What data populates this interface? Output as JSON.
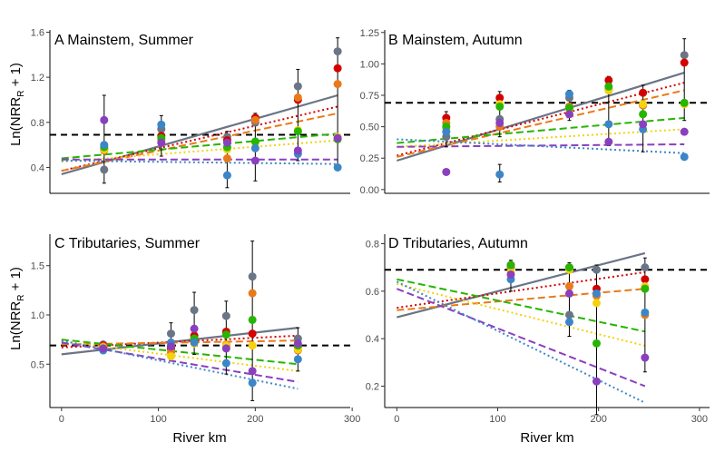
{
  "figure": {
    "ylabel_main": "Ln(NRR",
    "ylabel_sub": "R",
    "ylabel_tail": " + 1)",
    "xlabel": "River km"
  },
  "colors": {
    "red": "#d40000",
    "orange": "#e97a19",
    "yellow": "#f5d20d",
    "green": "#26b500",
    "blue": "#3b86c8",
    "purple": "#8a3fbf",
    "gray": "#6a7586",
    "reference": "#000000"
  },
  "chart_data": [
    {
      "type": "scatter",
      "title": "A Mainstem, Summer",
      "xlabel": "",
      "ylabel": "Ln(NRR_R + 1)",
      "xlim": [
        -12,
        298
      ],
      "ylim": [
        0.17,
        1.62
      ],
      "xticks": [],
      "yticks": [
        0.4,
        0.8,
        1.2,
        1.6
      ],
      "ytick_labels": [
        "0.4",
        "0.8",
        "1.2",
        "1.6"
      ],
      "reference_line": 0.69,
      "x_groups": [
        44,
        103,
        171,
        200,
        244,
        285
      ],
      "points": {
        "gray": [
          0.38,
          0.74,
          0.67,
          0.8,
          1.12,
          1.43
        ],
        "red": [
          0.56,
          0.68,
          0.64,
          0.84,
          1.0,
          1.28
        ],
        "orange": [
          0.55,
          0.64,
          0.48,
          0.82,
          1.02,
          1.14
        ],
        "yellow": [
          0.56,
          0.65,
          0.56,
          0.62,
          0.73,
          0.67
        ],
        "green": [
          0.58,
          0.66,
          0.58,
          0.63,
          0.72,
          0.65
        ],
        "blue": [
          0.6,
          0.78,
          0.33,
          0.57,
          0.52,
          0.4
        ],
        "purple": [
          0.82,
          0.62,
          0.62,
          0.46,
          0.55,
          0.66
        ]
      },
      "errorbars": [
        {
          "x": 44,
          "low": 0.26,
          "high": 1.04
        },
        {
          "x": 103,
          "low": 0.5,
          "high": 0.86
        },
        {
          "x": 171,
          "low": 0.22,
          "high": 0.72
        },
        {
          "x": 200,
          "low": 0.28,
          "high": 0.88
        },
        {
          "x": 244,
          "low": 0.46,
          "high": 1.27
        },
        {
          "x": 285,
          "low": 0.4,
          "high": 1.55
        }
      ],
      "trends": {
        "gray": [
          0.34,
          1.04
        ],
        "red": [
          0.37,
          0.94
        ],
        "orange": [
          0.37,
          0.88
        ],
        "green": [
          0.48,
          0.7
        ],
        "yellow": [
          0.45,
          0.64
        ],
        "purple": [
          0.47,
          0.47
        ],
        "blue": [
          0.46,
          0.43
        ]
      }
    },
    {
      "type": "scatter",
      "title": "B Mainstem, Autumn",
      "xlabel": "",
      "ylabel": "",
      "xlim": [
        -12,
        310
      ],
      "ylim": [
        -0.03,
        1.27
      ],
      "xticks": [],
      "yticks": [
        0.0,
        0.25,
        0.5,
        0.75,
        1.0,
        1.25
      ],
      "ytick_labels": [
        "0.00",
        "0.25",
        "0.50",
        "0.75",
        "1.00",
        "1.25"
      ],
      "reference_line": 0.69,
      "x_groups": [
        49,
        102,
        171,
        210,
        244,
        285
      ],
      "points": {
        "gray": [
          0.42,
          0.56,
          0.73,
          0.79,
          0.67,
          1.07
        ],
        "red": [
          0.57,
          0.73,
          0.66,
          0.87,
          0.77,
          1.01
        ],
        "orange": [
          0.53,
          0.5,
          0.66,
          0.8,
          0.67,
          0.68
        ],
        "yellow": [
          0.48,
          0.68,
          0.64,
          0.79,
          0.68,
          0.68
        ],
        "green": [
          0.5,
          0.66,
          0.65,
          0.82,
          0.6,
          0.69
        ],
        "blue": [
          0.46,
          0.12,
          0.76,
          0.52,
          0.48,
          0.26
        ],
        "purple": [
          0.14,
          0.53,
          0.6,
          0.38,
          0.52,
          0.46
        ]
      },
      "errorbars": [
        {
          "x": 49,
          "low": 0.34,
          "high": 0.62
        },
        {
          "x": 102,
          "low": 0.06,
          "high": 0.2
        },
        {
          "x": 102,
          "low": 0.42,
          "high": 0.78
        },
        {
          "x": 171,
          "low": 0.55,
          "high": 0.79
        },
        {
          "x": 210,
          "low": 0.35,
          "high": 0.9
        },
        {
          "x": 244,
          "low": 0.3,
          "high": 0.83
        },
        {
          "x": 285,
          "low": 0.55,
          "high": 1.2
        }
      ],
      "trends": {
        "gray": [
          0.23,
          0.93
        ],
        "red": [
          0.27,
          0.85
        ],
        "orange": [
          0.26,
          0.79
        ],
        "green": [
          0.37,
          0.57
        ],
        "yellow": [
          0.34,
          0.48
        ],
        "purple": [
          0.34,
          0.36
        ],
        "blue": [
          0.4,
          0.29
        ]
      }
    },
    {
      "type": "scatter",
      "title": "C Tributaries, Summer",
      "xlabel": "River km",
      "ylabel": "Ln(NRR_R + 1)",
      "xlim": [
        -12,
        298
      ],
      "ylim": [
        0.06,
        1.82
      ],
      "xticks": [
        0,
        100,
        200,
        300
      ],
      "xtick_labels": [
        "0",
        "100",
        "200",
        "300"
      ],
      "yticks": [
        0.5,
        1.0,
        1.5
      ],
      "ytick_labels": [
        "0.5",
        "1.0",
        "1.5"
      ],
      "reference_line": 0.69,
      "x_groups": [
        43,
        113,
        137,
        170,
        197,
        244
      ],
      "points": {
        "gray": [
          0.7,
          0.81,
          1.05,
          0.99,
          1.39,
          0.76
        ],
        "red": [
          0.69,
          0.66,
          0.79,
          0.83,
          0.81,
          0.68
        ],
        "orange": [
          0.68,
          0.62,
          0.72,
          0.7,
          1.22,
          0.64
        ],
        "yellow": [
          0.67,
          0.58,
          0.71,
          0.69,
          0.69,
          0.65
        ],
        "green": [
          0.66,
          0.69,
          0.76,
          0.8,
          0.95,
          0.69
        ],
        "blue": [
          0.64,
          0.72,
          0.72,
          0.51,
          0.31,
          0.55
        ],
        "purple": [
          0.66,
          0.68,
          0.86,
          0.66,
          0.43,
          0.71
        ]
      },
      "errorbars": [
        {
          "x": 113,
          "low": 0.58,
          "high": 0.92
        },
        {
          "x": 137,
          "low": 0.6,
          "high": 1.23
        },
        {
          "x": 170,
          "low": 0.4,
          "high": 1.14
        },
        {
          "x": 197,
          "low": 0.13,
          "high": 1.75
        },
        {
          "x": 244,
          "low": 0.43,
          "high": 0.87
        }
      ],
      "trends": {
        "gray": [
          0.6,
          0.87
        ],
        "red": [
          0.67,
          0.79
        ],
        "orange": [
          0.7,
          0.74
        ],
        "green": [
          0.75,
          0.5
        ],
        "yellow": [
          0.73,
          0.43
        ],
        "purple": [
          0.72,
          0.32
        ],
        "blue": [
          0.74,
          0.25
        ]
      }
    },
    {
      "type": "scatter",
      "title": "D Tributaries, Autumn",
      "xlabel": "River km",
      "ylabel": "",
      "xlim": [
        -12,
        310
      ],
      "ylim": [
        0.11,
        0.84
      ],
      "xticks": [
        0,
        100,
        200,
        300
      ],
      "xtick_labels": [
        "0",
        "100",
        "200",
        "300"
      ],
      "yticks": [
        0.2,
        0.4,
        0.6,
        0.8
      ],
      "ytick_labels": [
        "0.2",
        "0.4",
        "0.6",
        "0.8"
      ],
      "reference_line": 0.69,
      "x_groups": [
        113,
        171,
        198,
        246
      ],
      "points": {
        "gray": [
          0.7,
          0.5,
          0.69,
          0.7
        ],
        "red": [
          0.71,
          0.7,
          0.61,
          0.65
        ],
        "orange": [
          0.7,
          0.62,
          0.58,
          0.5
        ],
        "yellow": [
          0.68,
          0.69,
          0.55,
          0.62
        ],
        "green": [
          0.71,
          0.7,
          0.38,
          0.61
        ],
        "blue": [
          0.65,
          0.47,
          0.59,
          0.51
        ],
        "purple": [
          0.67,
          0.59,
          0.22,
          0.32
        ]
      },
      "errorbars": [
        {
          "x": 113,
          "low": 0.6,
          "high": 0.73
        },
        {
          "x": 171,
          "low": 0.41,
          "high": 0.72
        },
        {
          "x": 198,
          "low": 0.08,
          "high": 0.71
        },
        {
          "x": 246,
          "low": 0.26,
          "high": 0.74
        }
      ],
      "trends": {
        "gray": [
          0.49,
          0.76
        ],
        "red": [
          0.53,
          0.68
        ],
        "orange": [
          0.52,
          0.61
        ],
        "green": [
          0.65,
          0.43
        ],
        "yellow": [
          0.63,
          0.37
        ],
        "purple": [
          0.61,
          0.2
        ],
        "blue": [
          0.64,
          0.13
        ]
      }
    }
  ]
}
